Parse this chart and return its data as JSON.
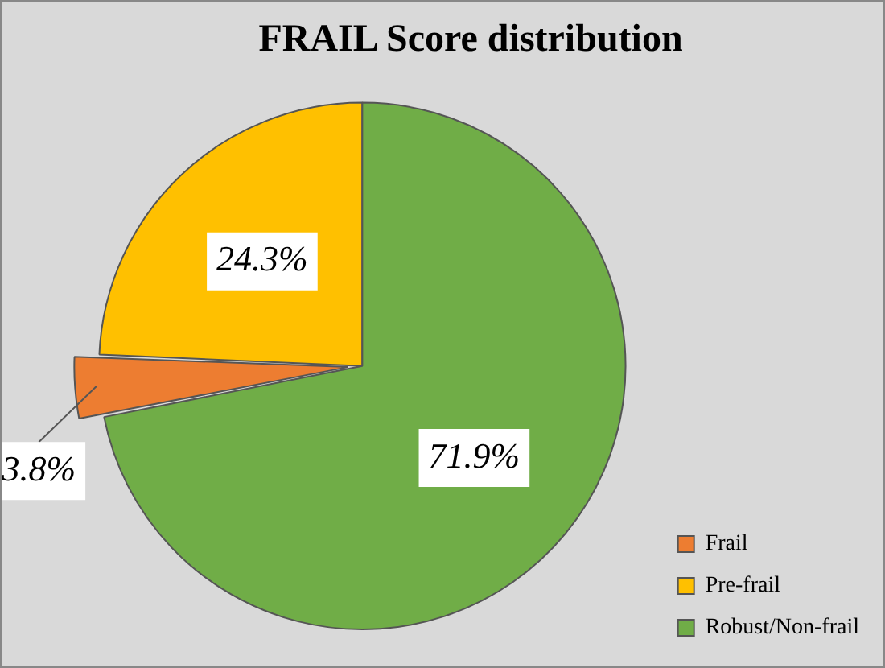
{
  "chart_data": {
    "type": "pie",
    "title": "FRAIL Score distribution",
    "categories": [
      "Frail",
      "Pre-frail",
      "Robust/Non-frail"
    ],
    "values": [
      3.8,
      24.3,
      71.9
    ],
    "colors": [
      "#ed7d31",
      "#ffc000",
      "#70ad47"
    ],
    "value_labels": [
      "3.8%",
      "24.3%",
      "71.9%"
    ],
    "legend": "bottom right"
  }
}
